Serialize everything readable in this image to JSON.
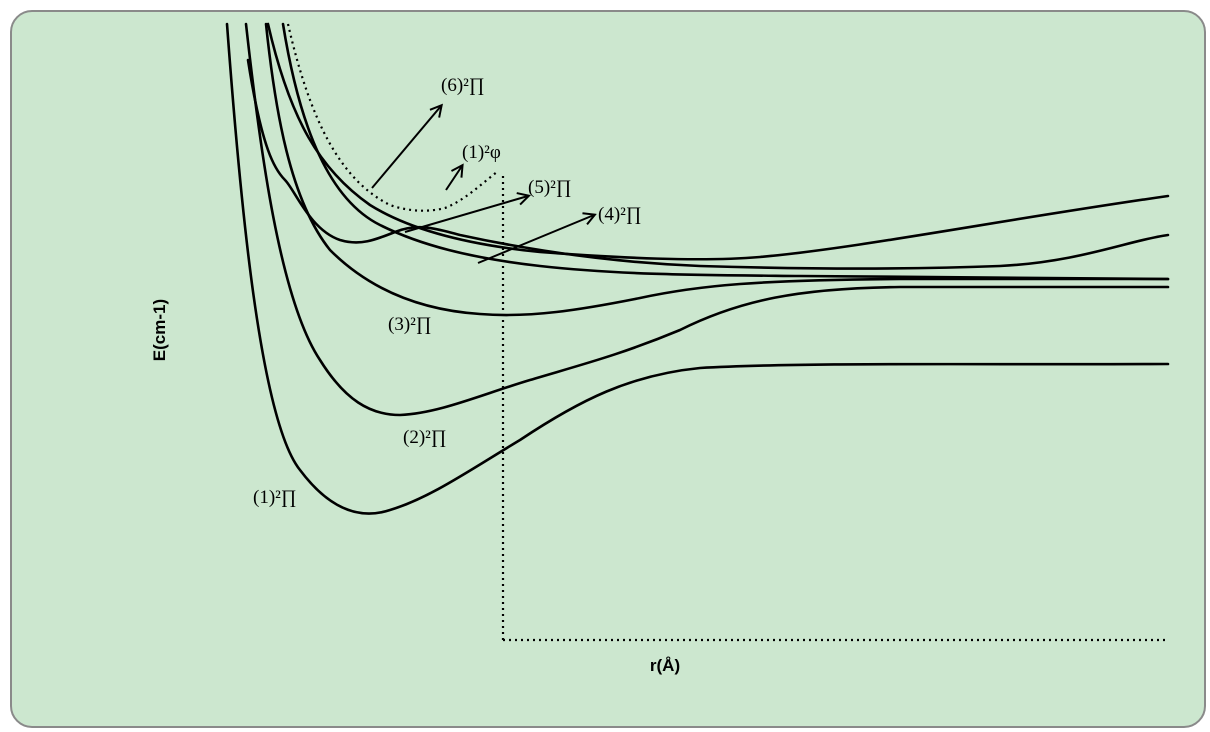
{
  "chart_data": {
    "type": "line",
    "title": "",
    "xlabel": "r(Å)",
    "ylabel": "E(cm-1)",
    "grid": false,
    "legend": "none",
    "series": [
      {
        "name": "(1)²∏",
        "style": "solid"
      },
      {
        "name": "(2)²∏",
        "style": "solid"
      },
      {
        "name": "(3)²∏",
        "style": "solid"
      },
      {
        "name": "(4)²∏",
        "style": "solid"
      },
      {
        "name": "(5)²∏",
        "style": "solid"
      },
      {
        "name": "(6)²∏",
        "style": "solid"
      },
      {
        "name": "(1)²φ",
        "style": "dotted"
      }
    ]
  },
  "colors": {
    "background": "#cce7cf",
    "border": "#8a8a8a",
    "line": "#000000"
  }
}
